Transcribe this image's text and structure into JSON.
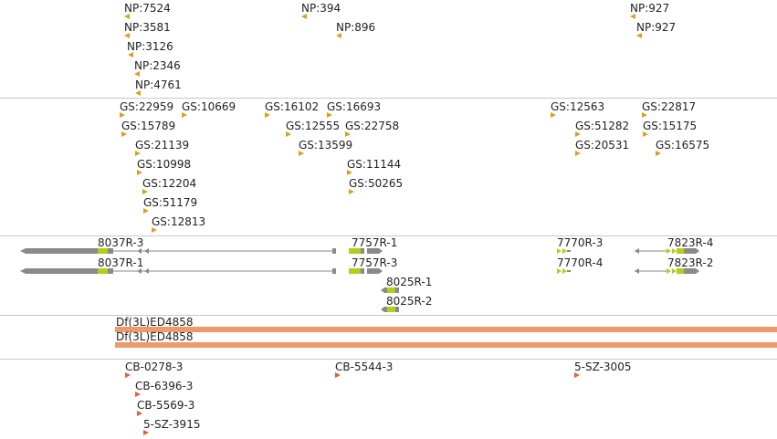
{
  "colors": {
    "marker": "#d9a01a",
    "marker_red": "#ea5a3c",
    "gene_gray": "#8a8a8a",
    "cds": "#b5cc1a",
    "deletion": "#ee9a6a",
    "divider": "#c8c8c8"
  },
  "np_labels": [
    "NP:7524",
    "NP:3581",
    "NP:3126",
    "NP:2346",
    "NP:4761",
    "NP:394",
    "NP:896",
    "NP:927",
    "NP:927"
  ],
  "gs_labels": [
    "GS:22959",
    "GS:10669",
    "GS:15789",
    "GS:21139",
    "GS:10998",
    "GS:12204",
    "GS:51179",
    "GS:12813",
    "GS:16102",
    "GS:16693",
    "GS:12555",
    "GS:22758",
    "GS:13599",
    "GS:11144",
    "GS:50265",
    "GS:12563",
    "GS:22817",
    "GS:51282",
    "GS:15175",
    "GS:20531",
    "GS:16575"
  ],
  "gene_labels": [
    "8037R-3",
    "8037R-1",
    "7757R-1",
    "7757R-3",
    "8025R-1",
    "8025R-2",
    "7770R-3",
    "7770R-4",
    "7823R-4",
    "7823R-2"
  ],
  "deletion_labels": [
    "Df(3L)ED4858",
    "Df(3L)ED4858"
  ],
  "cb_labels": [
    "CB-0278-3",
    "CB-6396-3",
    "CB-5569-3",
    "5-SZ-3915",
    "CB-5544-3",
    "5-SZ-3005"
  ]
}
